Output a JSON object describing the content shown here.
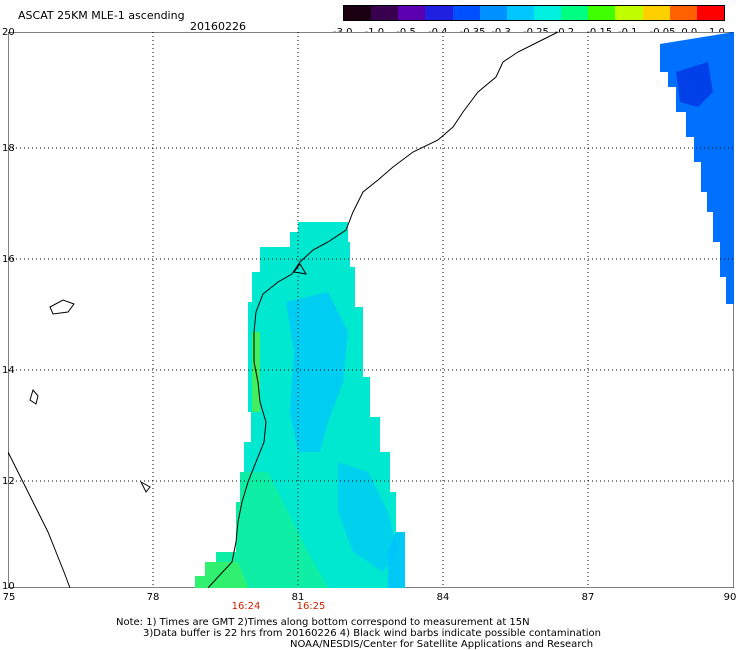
{
  "header": {
    "title": "ASCAT 25KM MLE-1 ascending",
    "date": "20160226"
  },
  "colorbar": {
    "labels": [
      "-3.0",
      "-1.0",
      "-0.5",
      "-0.4",
      "-0.35",
      "-0.3",
      "-0.25",
      "-0.2",
      "-0.15",
      "-0.1",
      "-0.05",
      "0.0",
      "1.0"
    ],
    "colors": [
      "#1a0010",
      "#3a0050",
      "#5a00b0",
      "#2020e0",
      "#0050ff",
      "#0090ff",
      "#00c8ff",
      "#00f0e0",
      "#00ff80",
      "#40ff00",
      "#c0ff00",
      "#ffd000",
      "#ff6000",
      "#ff0000"
    ]
  },
  "axes": {
    "lat_labels": [
      "20",
      "18",
      "16",
      "14",
      "12",
      "10"
    ],
    "lon_labels": [
      "75",
      "78",
      "81",
      "84",
      "87",
      "90"
    ]
  },
  "times": [
    "16:24",
    "16:25"
  ],
  "notes": [
    "Note: 1) Times are GMT 2)Times along bottom correspond to measurement at 15N",
    "3)Data buffer is 22 hrs from 20160226 4) Black wind barbs indicate possible contamination",
    "NOAA/NESDIS/Center for Satellite Applications and Research"
  ]
}
